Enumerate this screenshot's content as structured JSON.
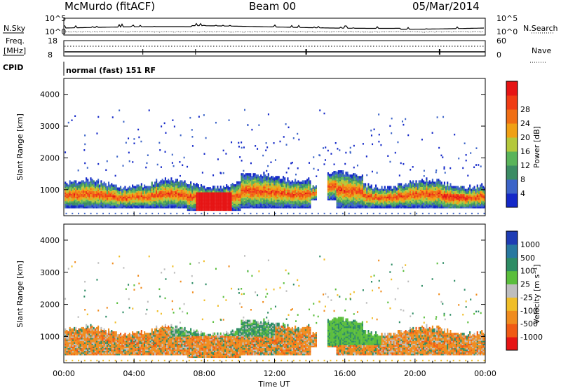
{
  "header": {
    "station": "McMurdo (fitACF)",
    "beam": "Beam 00",
    "date": "05/Mar/2014"
  },
  "noise_panel": {
    "left_label": "N.Sky",
    "right_label": "N.Search",
    "left_ticks": [
      "10^5",
      "10^0"
    ],
    "right_ticks": [
      "10^5",
      "10^0"
    ]
  },
  "freq_panel": {
    "left_label_1": "Freq.",
    "left_label_2": "[MHz]",
    "right_label": "Nave",
    "left_ticks": [
      "18",
      "8"
    ],
    "right_ticks": [
      "60",
      "0"
    ]
  },
  "cpid": {
    "label": "CPID",
    "text": "normal (fast) 151 RF"
  },
  "x_axis": {
    "title": "Time UT",
    "ticks": [
      "00:00",
      "04:00",
      "08:00",
      "12:00",
      "16:00",
      "20:00",
      "00:00"
    ]
  },
  "power_panel": {
    "ylabel": "Slant Range [km]",
    "yticks": [
      "1000",
      "2000",
      "3000",
      "4000"
    ],
    "colorbar_title": "Power [dB]",
    "colorbar_ticks": [
      "4",
      "8",
      "12",
      "16",
      "20",
      "24",
      "28"
    ],
    "colors": [
      "#1428c8",
      "#3c64c8",
      "#3c8c64",
      "#5ab45a",
      "#b4c83c",
      "#f0a014",
      "#f06e14",
      "#f03c14",
      "#e61414"
    ]
  },
  "velocity_panel": {
    "ylabel": "Slant Range [km]",
    "yticks": [
      "1000",
      "2000",
      "3000",
      "4000"
    ],
    "colorbar_title": "Velocity [m s⁻¹]",
    "colorbar_ticks": [
      "1000",
      "500",
      "100",
      "25",
      "-25",
      "-100",
      "-500",
      "-1000"
    ],
    "colors": [
      "#1e3cb4",
      "#2878a0",
      "#2d8c64",
      "#5abe3c",
      "#bebebe",
      "#f0be28",
      "#f08c1e",
      "#f05a14",
      "#e61414"
    ]
  },
  "chart_data": {
    "type": "heatmap",
    "x_domain": [
      0,
      24
    ],
    "y_domain": [
      180,
      4500
    ],
    "x_units": "hours UT",
    "y_units": "km"
  }
}
